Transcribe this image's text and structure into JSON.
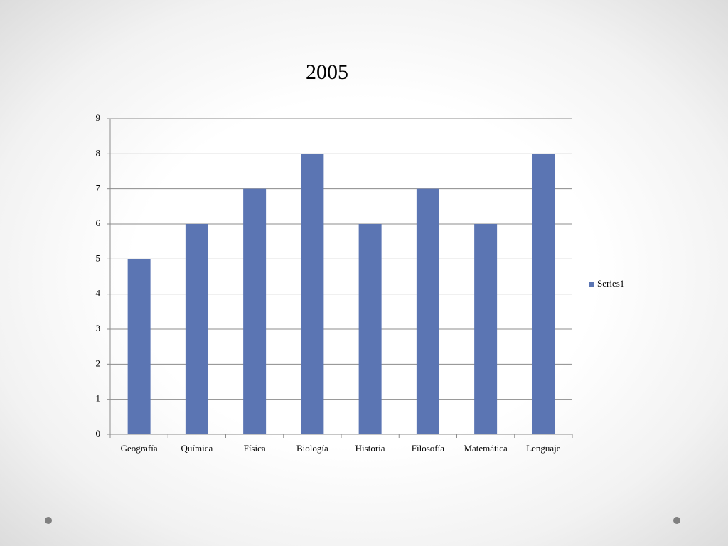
{
  "chart_data": {
    "type": "bar",
    "title": "2005",
    "categories": [
      "Geografía",
      "Química",
      "Física",
      "Biología",
      "Historia",
      "Filosofía",
      "Matemática",
      "Lenguaje"
    ],
    "series": [
      {
        "name": "Series1",
        "color": "#5b75b3",
        "values": [
          5,
          6,
          7,
          8,
          6,
          7,
          6,
          8
        ]
      }
    ],
    "ylim": [
      0,
      9
    ],
    "yticks": [
      0,
      1,
      2,
      3,
      4,
      5,
      6,
      7,
      8,
      9
    ],
    "grid": true,
    "legend": "right"
  }
}
